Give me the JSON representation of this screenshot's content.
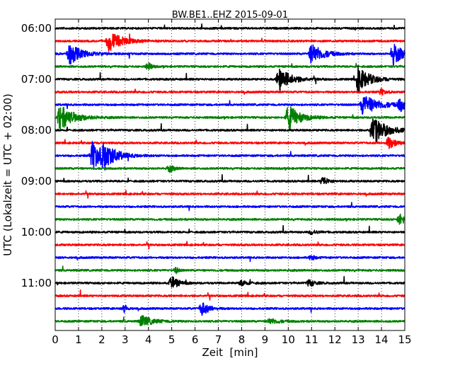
{
  "chart_data": {
    "type": "line",
    "title": "BW.BE1..EHZ 2015-09-01",
    "xlabel": "Zeit  [min]",
    "ylabel": "UTC (Lokalzeit = UTC + 02:00)",
    "xlim": [
      0,
      15
    ],
    "x_ticks": [
      "0",
      "1",
      "2",
      "3",
      "4",
      "5",
      "6",
      "7",
      "8",
      "9",
      "10",
      "11",
      "12",
      "13",
      "14",
      "15"
    ],
    "y_ticks": [
      "06:00",
      "07:00",
      "08:00",
      "09:00",
      "10:00",
      "11:00"
    ],
    "grid": "vertical-dotted",
    "line_colors": [
      "#000000",
      "#ff0000",
      "#0000ff",
      "#008000"
    ],
    "series": [
      {
        "start": "06:00",
        "color": "#000000",
        "events": []
      },
      {
        "start": "06:15",
        "color": "#ff0000",
        "events": [
          {
            "t": 2.3,
            "amp": 14,
            "dur": 1.2
          }
        ]
      },
      {
        "start": "06:30",
        "color": "#0000ff",
        "events": [
          {
            "t": 0.6,
            "amp": 16,
            "dur": 1.0
          },
          {
            "t": 11.0,
            "amp": 15,
            "dur": 1.0
          },
          {
            "t": 14.5,
            "amp": 16,
            "dur": 0.8
          }
        ]
      },
      {
        "start": "06:45",
        "color": "#008000",
        "events": [
          {
            "t": 4.0,
            "amp": 5,
            "dur": 0.3
          }
        ]
      },
      {
        "start": "07:00",
        "color": "#000000",
        "events": [
          {
            "t": 9.6,
            "amp": 18,
            "dur": 1.0
          },
          {
            "t": 13.0,
            "amp": 18,
            "dur": 1.0
          }
        ]
      },
      {
        "start": "07:15",
        "color": "#ff0000",
        "events": [
          {
            "t": 14.0,
            "amp": 4,
            "dur": 0.4
          }
        ]
      },
      {
        "start": "07:30",
        "color": "#0000ff",
        "events": [
          {
            "t": 13.2,
            "amp": 14,
            "dur": 1.4
          },
          {
            "t": 14.8,
            "amp": 9,
            "dur": 0.5
          }
        ]
      },
      {
        "start": "07:45",
        "color": "#008000",
        "events": [
          {
            "t": 0.2,
            "amp": 18,
            "dur": 1.2
          },
          {
            "t": 10.0,
            "amp": 18,
            "dur": 1.0
          }
        ]
      },
      {
        "start": "08:00",
        "color": "#000000",
        "events": [
          {
            "t": 13.6,
            "amp": 20,
            "dur": 1.2
          }
        ]
      },
      {
        "start": "08:15",
        "color": "#ff0000",
        "events": [
          {
            "t": 14.3,
            "amp": 9,
            "dur": 0.6
          }
        ]
      },
      {
        "start": "08:30",
        "color": "#0000ff",
        "events": [
          {
            "t": 1.6,
            "amp": 20,
            "dur": 1.3
          },
          {
            "t": 2.1,
            "amp": 14,
            "dur": 0.8
          }
        ]
      },
      {
        "start": "08:45",
        "color": "#008000",
        "events": [
          {
            "t": 4.9,
            "amp": 5,
            "dur": 0.4
          }
        ]
      },
      {
        "start": "09:00",
        "color": "#000000",
        "events": [
          {
            "t": 11.5,
            "amp": 7,
            "dur": 0.4
          }
        ]
      },
      {
        "start": "09:15",
        "color": "#ff0000",
        "events": []
      },
      {
        "start": "09:30",
        "color": "#0000ff",
        "events": []
      },
      {
        "start": "09:45",
        "color": "#008000",
        "events": [
          {
            "t": 14.8,
            "amp": 9,
            "dur": 0.4
          }
        ]
      },
      {
        "start": "10:00",
        "color": "#000000",
        "events": [
          {
            "t": 11.0,
            "amp": 3,
            "dur": 0.5
          }
        ]
      },
      {
        "start": "10:15",
        "color": "#ff0000",
        "events": []
      },
      {
        "start": "10:30",
        "color": "#0000ff",
        "events": [
          {
            "t": 11.0,
            "amp": 4,
            "dur": 0.3
          }
        ]
      },
      {
        "start": "10:45",
        "color": "#008000",
        "events": [
          {
            "t": 5.2,
            "amp": 4,
            "dur": 0.2
          }
        ]
      },
      {
        "start": "11:00",
        "color": "#000000",
        "events": [
          {
            "t": 5.0,
            "amp": 9,
            "dur": 0.6
          },
          {
            "t": 8.0,
            "amp": 4,
            "dur": 0.6
          },
          {
            "t": 10.9,
            "amp": 5,
            "dur": 0.5
          }
        ]
      },
      {
        "start": "11:15",
        "color": "#ff0000",
        "events": []
      },
      {
        "start": "11:30",
        "color": "#0000ff",
        "events": [
          {
            "t": 3.0,
            "amp": 6,
            "dur": 0.2
          },
          {
            "t": 6.3,
            "amp": 10,
            "dur": 0.6
          }
        ]
      },
      {
        "start": "11:45",
        "color": "#008000",
        "events": [
          {
            "t": 3.7,
            "amp": 8,
            "dur": 1.0
          },
          {
            "t": 9.2,
            "amp": 4,
            "dur": 0.8
          }
        ]
      }
    ]
  }
}
